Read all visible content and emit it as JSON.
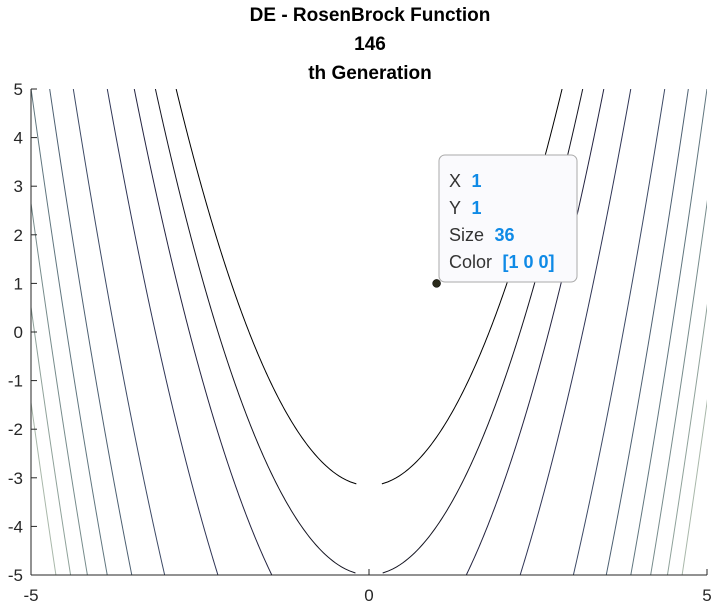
{
  "chart_data": {
    "type": "scatter",
    "title": [
      "DE - RosenBrock Function",
      "146",
      "th Generation"
    ],
    "xlabel": "",
    "ylabel": "",
    "xlim": [
      -5,
      5
    ],
    "ylim": [
      -5,
      5
    ],
    "x_ticks": [
      -5,
      0,
      5
    ],
    "y_ticks": [
      5,
      4,
      3,
      2,
      1,
      0,
      -1,
      -2,
      -3,
      -4,
      -5
    ],
    "grid": false,
    "background": "contour plot of the Rosenbrock function",
    "points": [
      {
        "x": 1,
        "y": 1
      }
    ],
    "datatip": {
      "rows": [
        {
          "key": "X",
          "value": "1"
        },
        {
          "key": "Y",
          "value": "1"
        },
        {
          "key": "Size",
          "value": "36"
        },
        {
          "key": "Color",
          "value": "[1 0 0]"
        }
      ]
    }
  },
  "colors": {
    "axis": "#262626",
    "marker": "#2a2a1a",
    "datatip_value": "#0f8ae6",
    "datatip_border": "#aaaaaa",
    "datatip_bg": "#fafafd"
  }
}
